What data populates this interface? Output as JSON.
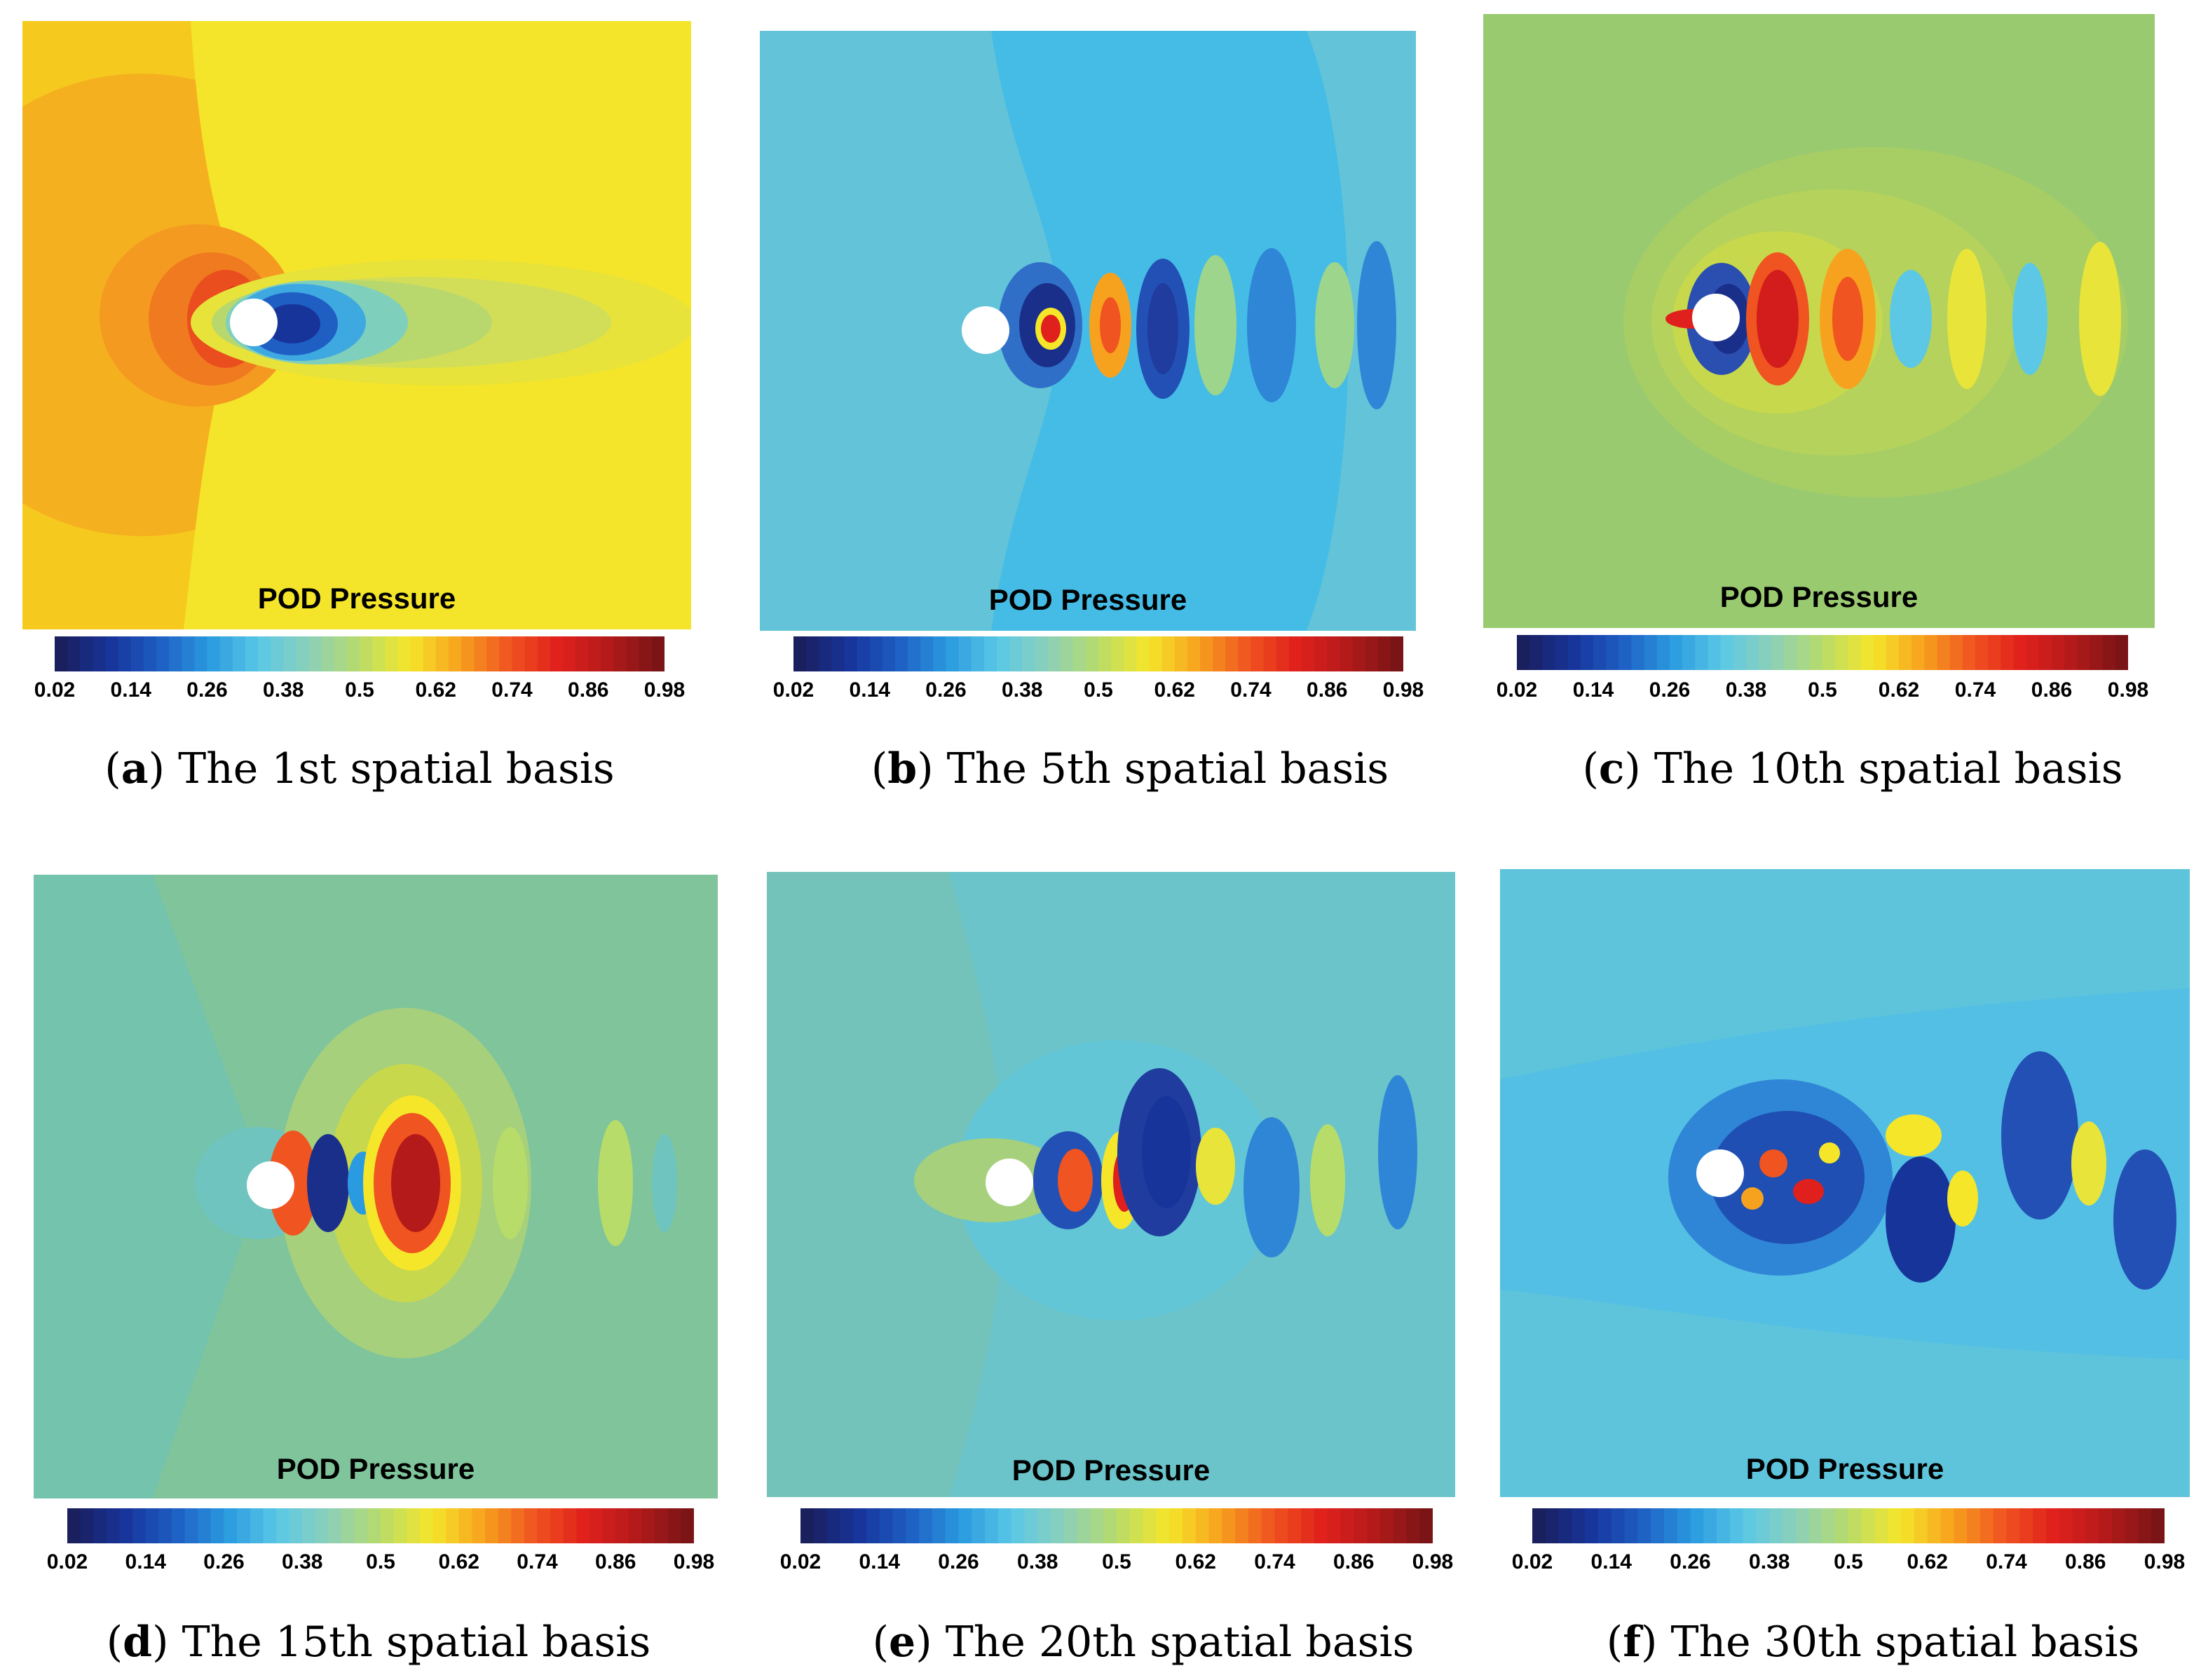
{
  "colormap": {
    "stops": [
      "#1a1f5e",
      "#17349a",
      "#1f5fc4",
      "#2a9be0",
      "#5cc8e6",
      "#8cd0b8",
      "#b8dc6a",
      "#f5e62a",
      "#f7a21e",
      "#f05420",
      "#e0201c",
      "#b41a1a",
      "#7a1416"
    ],
    "ticks": [
      "0.02",
      "0.14",
      "0.26",
      "0.38",
      "0.5",
      "0.62",
      "0.74",
      "0.86",
      "0.98"
    ]
  },
  "panels": [
    {
      "id": "a",
      "plot_title": "POD Pressure",
      "caption_letter": "a",
      "caption_text": "The 1st spatial basis",
      "background": "#f4e52a"
    },
    {
      "id": "b",
      "plot_title": "POD Pressure",
      "caption_letter": "b",
      "caption_text": "The 5th spatial basis",
      "background": "#63c3d9"
    },
    {
      "id": "c",
      "plot_title": "POD Pressure",
      "caption_letter": "c",
      "caption_text": "The 10th spatial basis",
      "background": "#9aca70"
    },
    {
      "id": "d",
      "plot_title": "POD Pressure",
      "caption_letter": "d",
      "caption_text": "The 15th spatial basis",
      "background": "#80c49b"
    },
    {
      "id": "e",
      "plot_title": "POD Pressure",
      "caption_letter": "e",
      "caption_text": "The 20th spatial basis",
      "background": "#74c3bb"
    },
    {
      "id": "f",
      "plot_title": "POD Pressure",
      "caption_letter": "f",
      "caption_text": "The 30th spatial basis",
      "background": "#5ec4dc"
    }
  ]
}
